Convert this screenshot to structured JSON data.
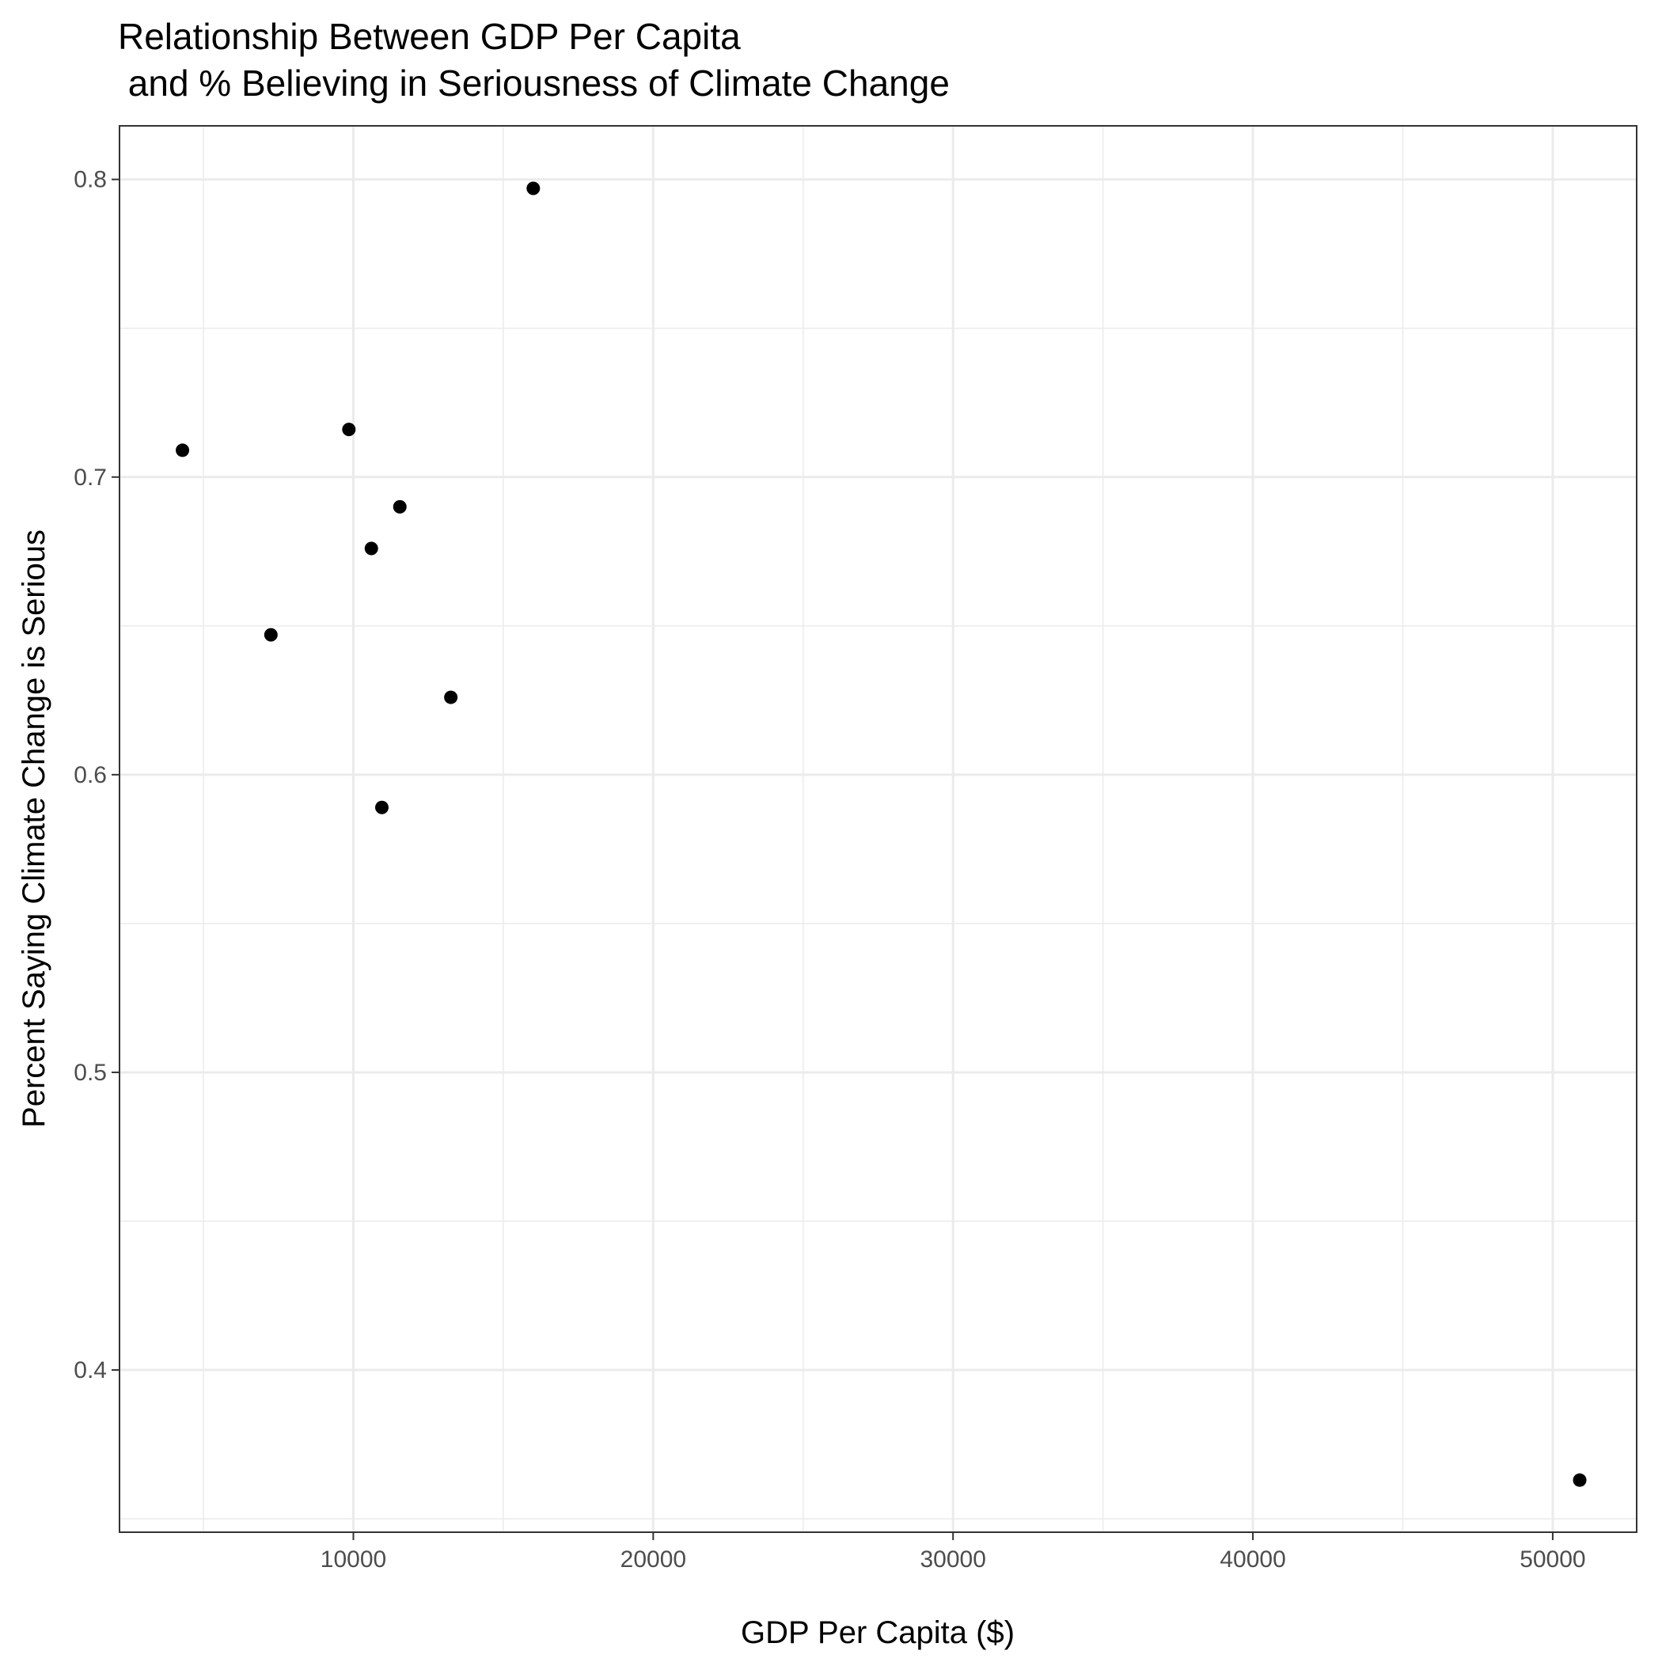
{
  "chart_data": {
    "type": "scatter",
    "title_lines": [
      "Relationship Between GDP Per Capita",
      " and % Believing in Seriousness of Climate Change"
    ],
    "xlabel": "GDP Per Capita ($)",
    "ylabel": "Percent Saying Climate Change is Serious",
    "xlim": [
      2200,
      52800
    ],
    "ylim": [
      0.3455,
      0.818
    ],
    "x_major_ticks": [
      10000,
      20000,
      30000,
      40000,
      50000
    ],
    "x_minor_ticks": [
      5000,
      15000,
      25000,
      35000,
      45000
    ],
    "y_major_ticks": [
      0.4,
      0.5,
      0.6,
      0.7,
      0.8
    ],
    "y_minor_ticks": [
      0.35,
      0.45,
      0.55,
      0.65,
      0.75
    ],
    "x_tick_labels": [
      "10000",
      "20000",
      "30000",
      "40000",
      "50000"
    ],
    "y_tick_labels": [
      "0.4",
      "0.5",
      "0.6",
      "0.7",
      "0.8"
    ],
    "grid": true,
    "legend": "none",
    "point_color": "#000000",
    "panel_border_color": "#333333",
    "grid_color": "#ebebeb",
    "points": [
      {
        "x": 4300,
        "y": 0.709
      },
      {
        "x": 7250,
        "y": 0.647
      },
      {
        "x": 9850,
        "y": 0.716
      },
      {
        "x": 10600,
        "y": 0.676
      },
      {
        "x": 10950,
        "y": 0.589
      },
      {
        "x": 11550,
        "y": 0.69
      },
      {
        "x": 13250,
        "y": 0.626
      },
      {
        "x": 16000,
        "y": 0.797
      },
      {
        "x": 50900,
        "y": 0.363
      }
    ]
  }
}
